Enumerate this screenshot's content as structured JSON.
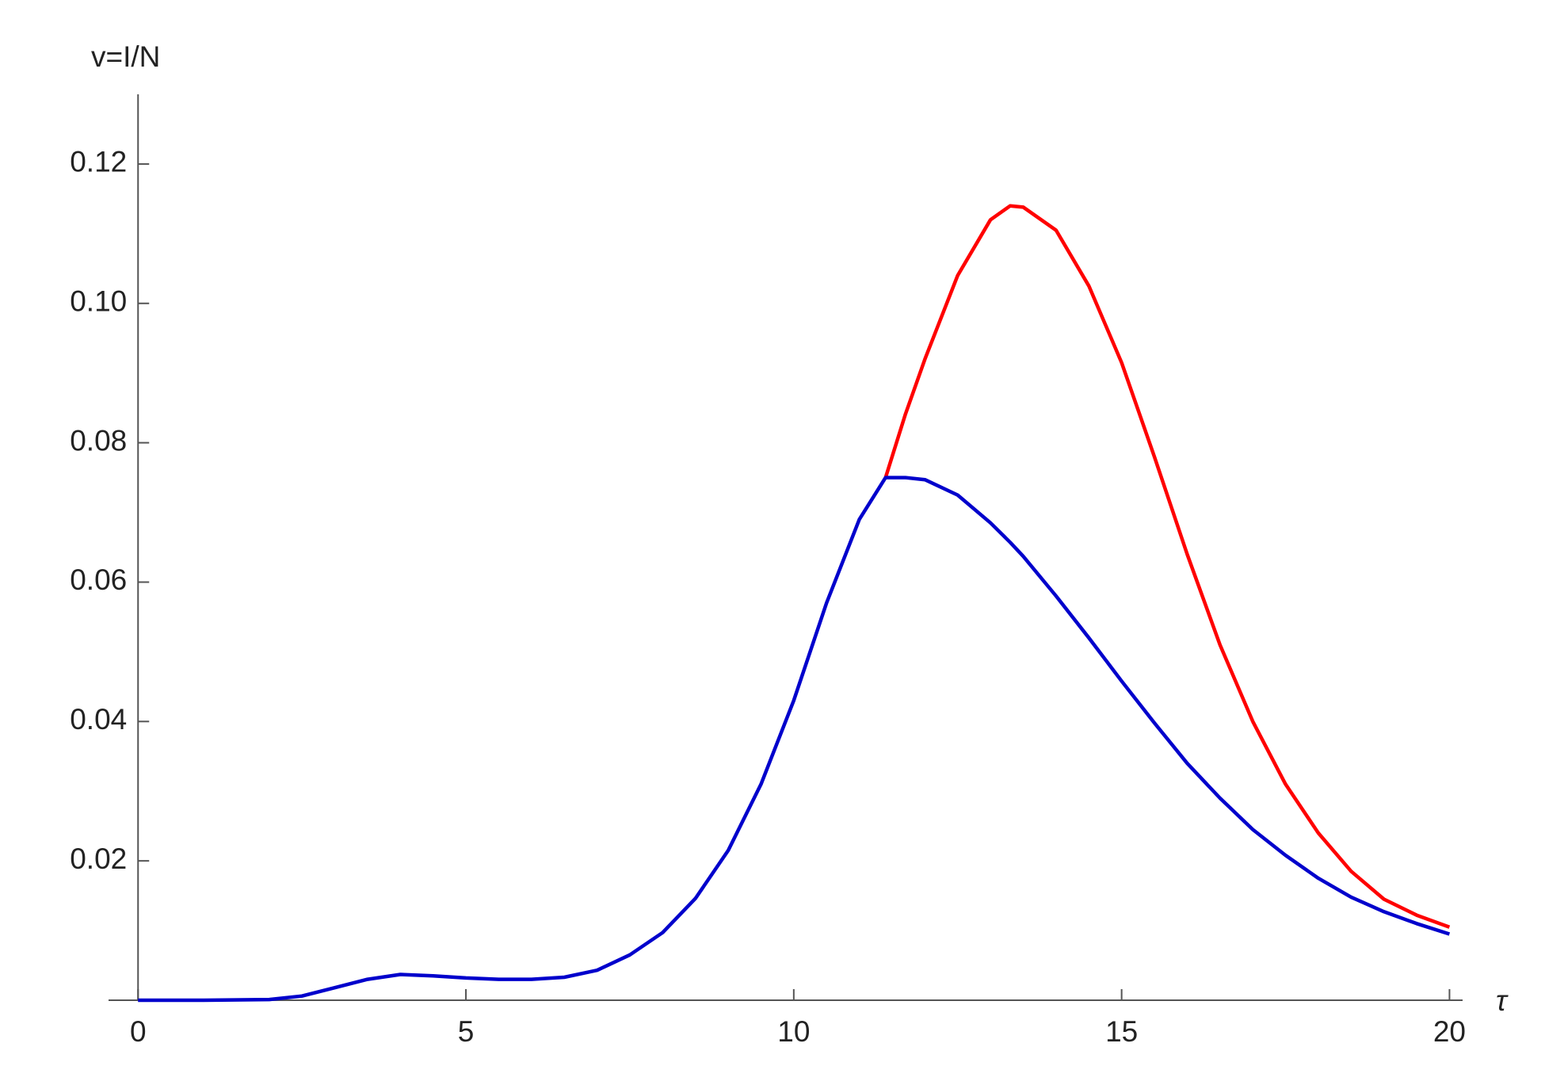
{
  "chart_data": {
    "type": "line",
    "y_label": "v=I/N",
    "x_label": "τ",
    "x": [
      0,
      1,
      2,
      2.5,
      3,
      3.5,
      4,
      4.5,
      5,
      5.5,
      6,
      6.5,
      7,
      7.5,
      8,
      8.5,
      9,
      9.5,
      10,
      10.5,
      11,
      11.4,
      11.7,
      12,
      12.5,
      13,
      13.3,
      13.5,
      14,
      14.5,
      15,
      15.5,
      16,
      16.5,
      17,
      17.5,
      18,
      18.5,
      19,
      19.5,
      20
    ],
    "series": [
      {
        "color": "#ff0000",
        "values": [
          null,
          null,
          null,
          null,
          null,
          null,
          null,
          null,
          null,
          null,
          null,
          null,
          null,
          null,
          null,
          null,
          null,
          null,
          null,
          null,
          null,
          0.075,
          0.084,
          0.092,
          0.104,
          0.112,
          0.114,
          0.1138,
          0.1105,
          0.1025,
          0.0915,
          0.078,
          0.064,
          0.051,
          0.04,
          0.031,
          0.024,
          0.0185,
          0.0145,
          0.0122,
          0.0105
        ]
      },
      {
        "color": "#0000cc",
        "values": [
          0,
          0,
          0.0001,
          0.0006,
          0.0018,
          0.003,
          0.0037,
          0.0035,
          0.0032,
          0.003,
          0.003,
          0.0033,
          0.0043,
          0.0065,
          0.0097,
          0.0146,
          0.0215,
          0.031,
          0.043,
          0.057,
          0.069,
          0.075,
          0.075,
          0.0747,
          0.0725,
          0.0685,
          0.0657,
          0.0637,
          0.058,
          0.052,
          0.0458,
          0.0398,
          0.034,
          0.029,
          0.0245,
          0.0208,
          0.0175,
          0.0148,
          0.0127,
          0.011,
          0.0095
        ]
      }
    ],
    "xlim": [
      -0.45,
      20.2
    ],
    "ylim": [
      0,
      0.13
    ],
    "xticks": [
      0,
      5,
      10,
      15,
      20
    ],
    "yticks": [
      0.02,
      0.04,
      0.06,
      0.08,
      {
        "value": 0.1,
        "label": "0.10"
      },
      0.12
    ]
  }
}
